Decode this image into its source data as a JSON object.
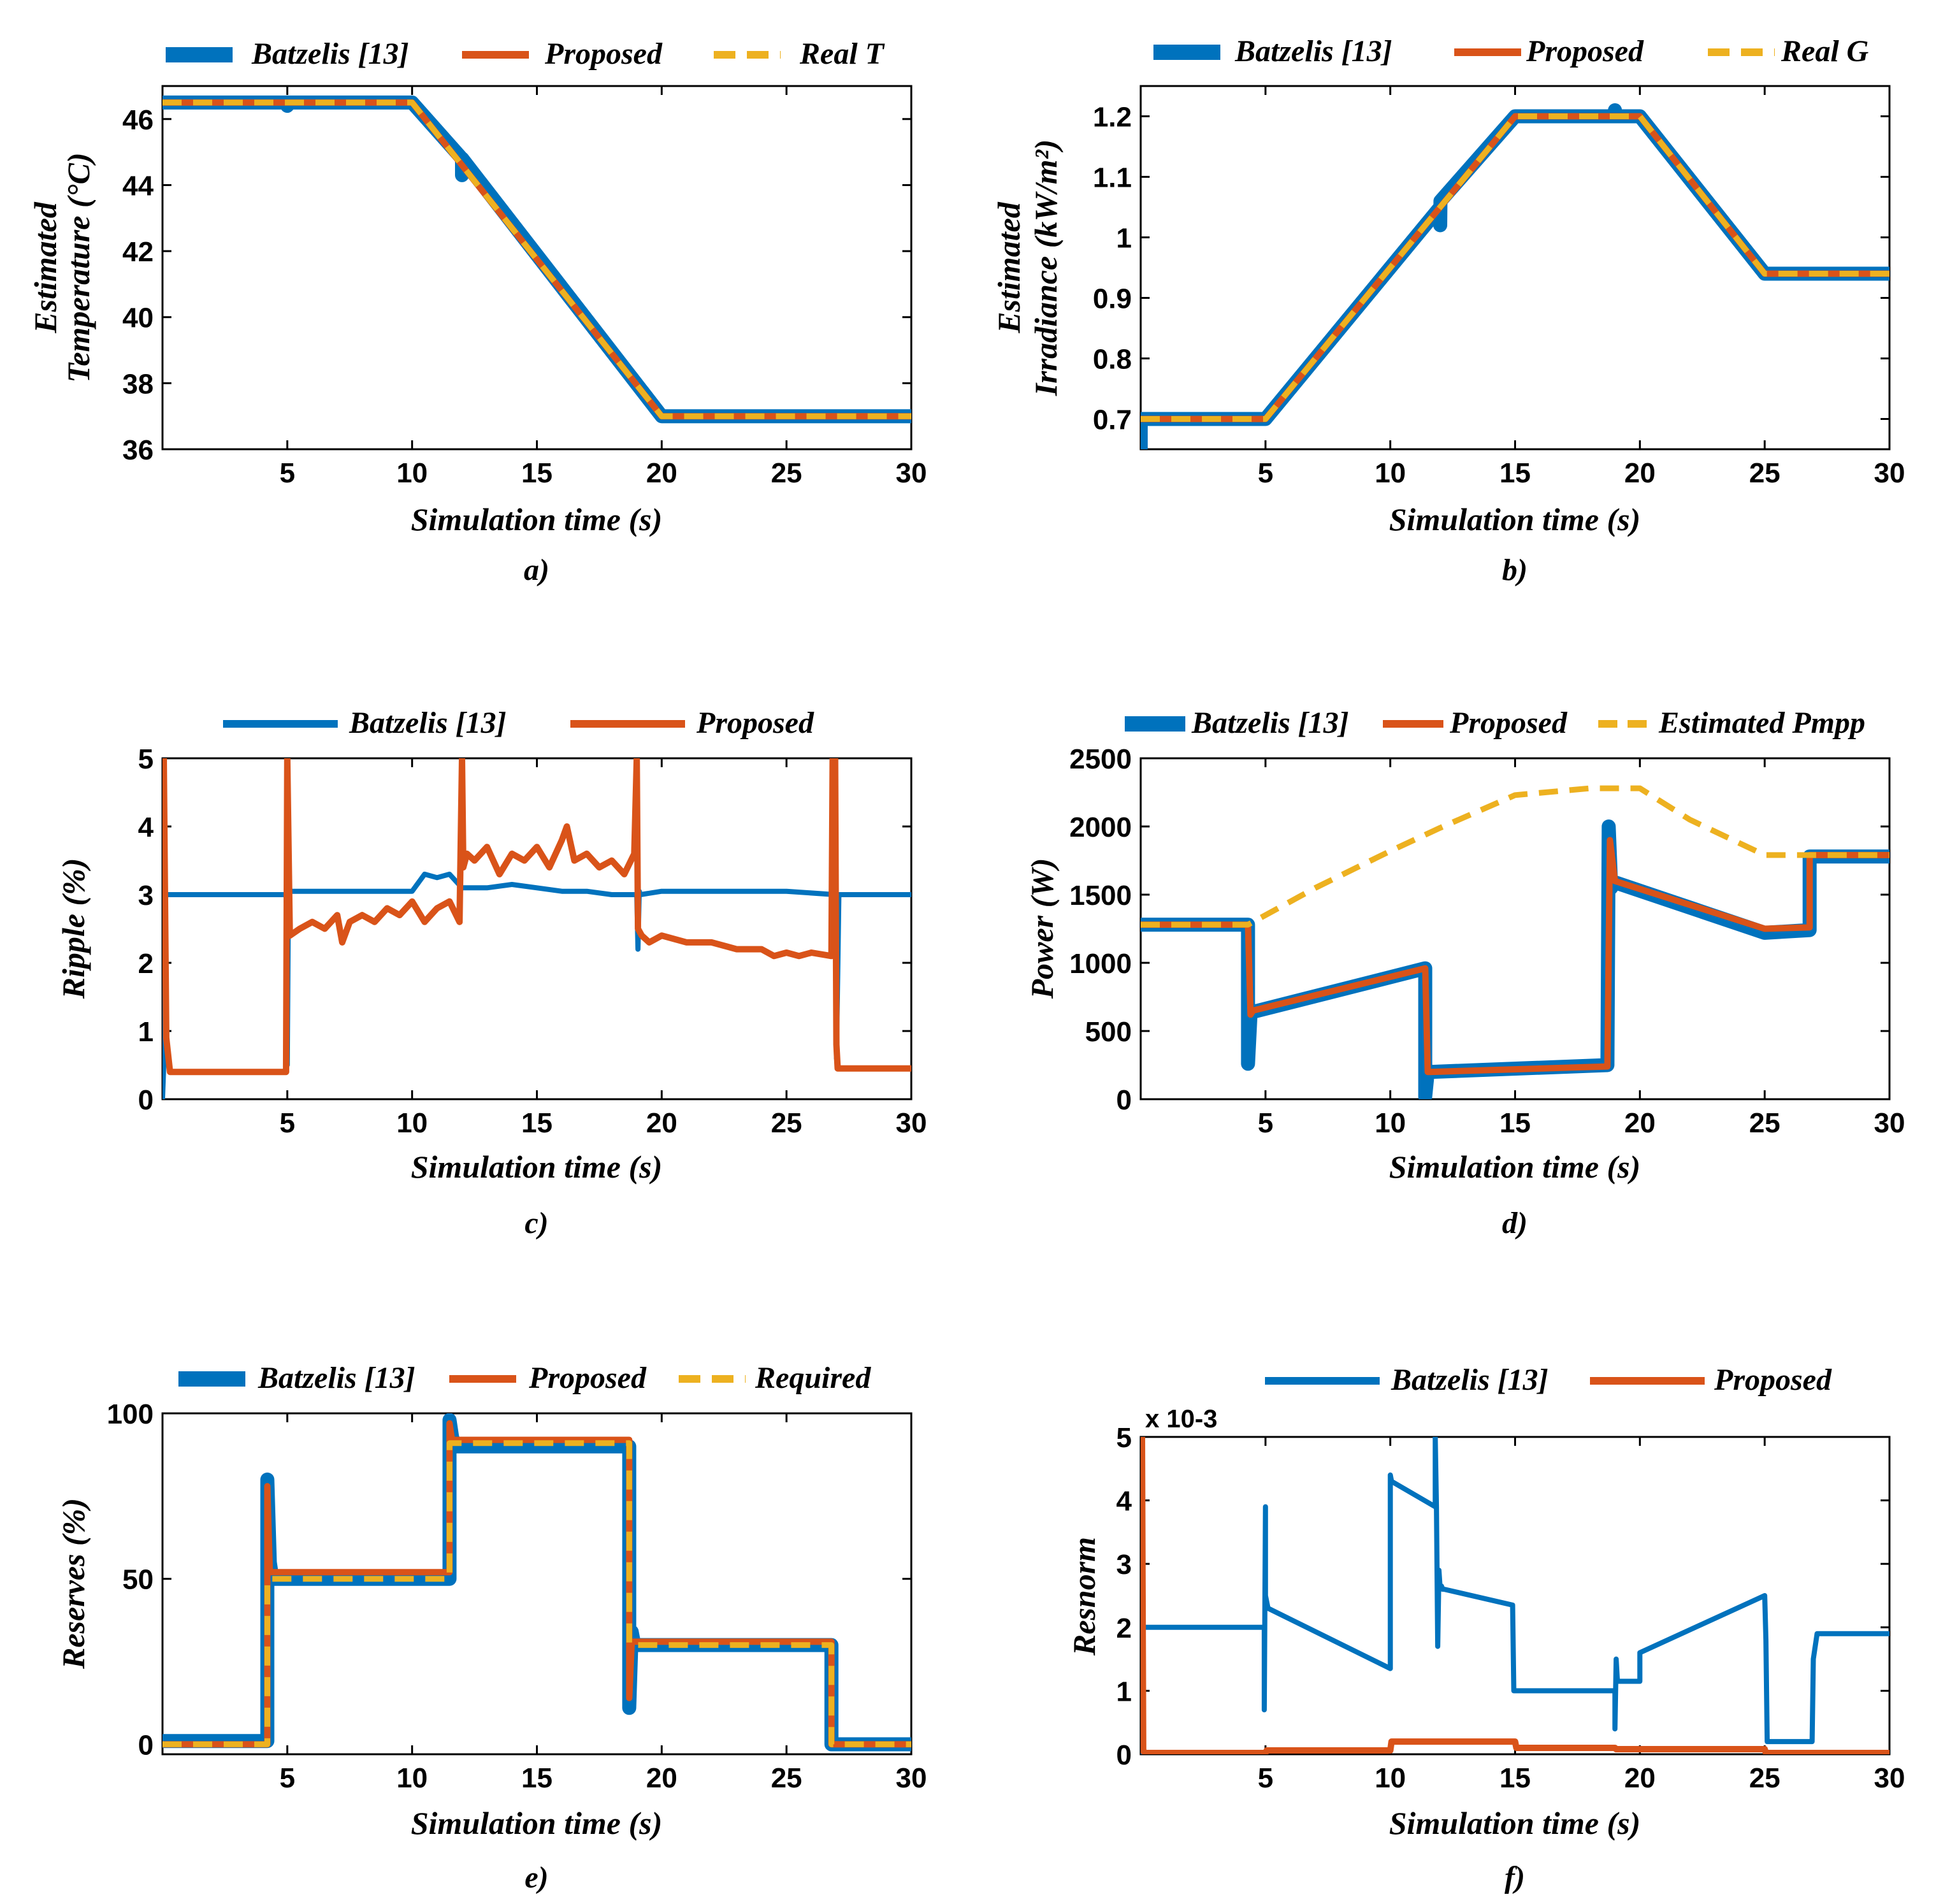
{
  "colors": {
    "batzelis": "#0072BD",
    "proposed": "#D95319",
    "reference": "#EDB120"
  },
  "chart_data": [
    {
      "id": "a",
      "type": "line",
      "caption": "a)",
      "xlabel": "Simulation time (s)",
      "ylabel_lines": [
        "Estimated",
        "Temperature (°C)"
      ],
      "xlim": [
        0,
        30
      ],
      "ylim": [
        36,
        47
      ],
      "xticks": [
        5,
        10,
        15,
        20,
        25,
        30
      ],
      "xtick_labels": [
        "5",
        "10",
        "15",
        "20",
        "25",
        "30"
      ],
      "yticks": [
        36,
        38,
        40,
        42,
        44,
        46
      ],
      "ytick_labels": [
        "36",
        "38",
        "40",
        "42",
        "44",
        "46"
      ],
      "legend": [
        "Batzelis [13]",
        "Proposed",
        "Real T"
      ],
      "series": [
        {
          "name": "Batzelis [13]",
          "style": "thick",
          "x": [
            0,
            5,
            5,
            5.01,
            10,
            12,
            12,
            12.01,
            20,
            30
          ],
          "y": [
            46.5,
            46.5,
            46.4,
            46.5,
            46.5,
            44.8,
            44.3,
            44.8,
            37,
            37
          ]
        },
        {
          "name": "Proposed",
          "style": "solid",
          "x": [
            0,
            10,
            20,
            30
          ],
          "y": [
            46.5,
            46.5,
            37,
            37
          ]
        },
        {
          "name": "Real T",
          "style": "dashed",
          "x": [
            0,
            10,
            20,
            30
          ],
          "y": [
            46.5,
            46.5,
            37,
            37
          ]
        }
      ]
    },
    {
      "id": "b",
      "type": "line",
      "caption": "b)",
      "xlabel": "Simulation time (s)",
      "ylabel_lines": [
        "Estimated",
        "Irradiance (kW/m²)"
      ],
      "xlim": [
        0,
        30
      ],
      "ylim": [
        0.65,
        1.25
      ],
      "xticks": [
        5,
        10,
        15,
        20,
        25,
        30
      ],
      "xtick_labels": [
        "5",
        "10",
        "15",
        "20",
        "25",
        "30"
      ],
      "yticks": [
        0.7,
        0.8,
        0.9,
        1.0,
        1.1,
        1.2
      ],
      "ytick_labels": [
        "0.7",
        "0.8",
        "0.9",
        "1",
        "1.1",
        "1.2"
      ],
      "legend": [
        "Batzelis [13]",
        "Proposed",
        "Real G"
      ],
      "series": [
        {
          "name": "Batzelis [13]",
          "style": "thick",
          "x": [
            0,
            0,
            0.3,
            0.3,
            5,
            12,
            12,
            12.01,
            15,
            19,
            19,
            19.01,
            20,
            25,
            30
          ],
          "y": [
            0.65,
            0.7,
            0.7,
            0.7,
            0.7,
            1.05,
            1.02,
            1.06,
            1.2,
            1.2,
            1.21,
            1.2,
            1.2,
            0.94,
            0.94
          ]
        },
        {
          "name": "Proposed",
          "style": "solid",
          "x": [
            0,
            5,
            15,
            20,
            25,
            30
          ],
          "y": [
            0.7,
            0.7,
            1.2,
            1.2,
            0.94,
            0.94
          ]
        },
        {
          "name": "Real G",
          "style": "dashed",
          "x": [
            0,
            5,
            15,
            20,
            25,
            30
          ],
          "y": [
            0.7,
            0.7,
            1.2,
            1.2,
            0.94,
            0.94
          ]
        }
      ]
    },
    {
      "id": "c",
      "type": "line",
      "caption": "c)",
      "xlabel": "Simulation time (s)",
      "ylabel_lines": [
        "Ripple (%)"
      ],
      "xlim": [
        0,
        30
      ],
      "ylim": [
        0,
        5
      ],
      "xticks": [
        5,
        10,
        15,
        20,
        25,
        30
      ],
      "xtick_labels": [
        "5",
        "10",
        "15",
        "20",
        "25",
        "30"
      ],
      "yticks": [
        0,
        1,
        2,
        3,
        4,
        5
      ],
      "ytick_labels": [
        "0",
        "1",
        "2",
        "3",
        "4",
        "5"
      ],
      "legend": [
        "Batzelis [13]",
        "Proposed"
      ],
      "series": [
        {
          "name": "Batzelis [13]",
          "style": "solid",
          "x": [
            0,
            0.05,
            0.1,
            0.2,
            4.95,
            5,
            5.05,
            5.1,
            10,
            10.5,
            11,
            11.5,
            12,
            13,
            14,
            15,
            16,
            17,
            18,
            19,
            19.05,
            19.1,
            19.15,
            20,
            25,
            26.95,
            27,
            27.05,
            27.1,
            30
          ],
          "y": [
            0,
            0.5,
            3,
            3,
            3,
            0.5,
            3.2,
            3.05,
            3.05,
            3.3,
            3.25,
            3.3,
            3.1,
            3.1,
            3.15,
            3.1,
            3.05,
            3.05,
            3.0,
            3.0,
            2.2,
            3.05,
            3.0,
            3.05,
            3.05,
            3.0,
            0.6,
            1.8,
            3,
            3
          ]
        },
        {
          "name": "Proposed",
          "style": "solid",
          "x": [
            0,
            0.05,
            0.15,
            0.3,
            4.9,
            4.95,
            5.0,
            5.1,
            5.5,
            6,
            6.5,
            7,
            7.2,
            7.5,
            8,
            8.5,
            9,
            9.5,
            10,
            10.5,
            11,
            11.5,
            11.9,
            12.0,
            12.05,
            12.2,
            12.5,
            13,
            13.5,
            14,
            14.5,
            15,
            15.5,
            16,
            16.2,
            16.5,
            17,
            17.5,
            18,
            18.5,
            18.9,
            19.0,
            19.05,
            19.2,
            19.5,
            20,
            21,
            22,
            23,
            24,
            24.5,
            25,
            25.5,
            26,
            26.8,
            26.85,
            26.95,
            27.0,
            27.05,
            30
          ],
          "y": [
            5,
            5,
            0.9,
            0.4,
            0.4,
            0.4,
            5,
            2.4,
            2.5,
            2.6,
            2.5,
            2.7,
            2.3,
            2.6,
            2.7,
            2.6,
            2.8,
            2.7,
            2.9,
            2.6,
            2.8,
            2.9,
            2.6,
            5,
            3.4,
            3.6,
            3.5,
            3.7,
            3.3,
            3.6,
            3.5,
            3.7,
            3.4,
            3.8,
            4.0,
            3.5,
            3.6,
            3.4,
            3.5,
            3.3,
            3.6,
            5,
            2.5,
            2.4,
            2.3,
            2.4,
            2.3,
            2.3,
            2.2,
            2.2,
            2.1,
            2.15,
            2.1,
            2.15,
            2.1,
            5,
            5,
            0.8,
            0.45,
            0.45
          ]
        }
      ]
    },
    {
      "id": "d",
      "type": "line",
      "caption": "d)",
      "xlabel": "Simulation time (s)",
      "ylabel_lines": [
        "Power (W)"
      ],
      "xlim": [
        0,
        30
      ],
      "ylim": [
        0,
        2500
      ],
      "xticks": [
        5,
        10,
        15,
        20,
        25,
        30
      ],
      "xtick_labels": [
        "5",
        "10",
        "15",
        "20",
        "25",
        "30"
      ],
      "yticks": [
        0,
        500,
        1000,
        1500,
        2000,
        2500
      ],
      "ytick_labels": [
        "0",
        "500",
        "1000",
        "1500",
        "2000",
        "2500"
      ],
      "legend": [
        "Batzelis [13]",
        "Proposed",
        "Estimated Pmpp"
      ],
      "series": [
        {
          "name": "Batzelis [13]",
          "style": "thick",
          "x": [
            0,
            4.3,
            4.3,
            4.4,
            4.5,
            11.4,
            11.4,
            11.5,
            11.6,
            18.7,
            18.75,
            18.85,
            19,
            25,
            26.8,
            26.8,
            30
          ],
          "y": [
            1280,
            1280,
            260,
            620,
            640,
            960,
            20,
            200,
            200,
            250,
            2000,
            1550,
            1590,
            1220,
            1240,
            1780,
            1780
          ]
        },
        {
          "name": "Proposed",
          "style": "solid",
          "x": [
            0,
            4.3,
            4.4,
            4.5,
            11.4,
            11.5,
            11.6,
            18.7,
            18.8,
            19,
            25,
            26.8,
            26.8,
            30
          ],
          "y": [
            1280,
            1280,
            620,
            650,
            960,
            200,
            200,
            240,
            1900,
            1600,
            1250,
            1260,
            1790,
            1790
          ]
        },
        {
          "name": "Estimated Pmpp",
          "style": "dashed",
          "x": [
            0,
            4.3,
            7,
            10,
            12,
            15,
            18,
            20,
            22,
            25,
            27,
            30
          ],
          "y": [
            1280,
            1280,
            1550,
            1820,
            1990,
            2230,
            2280,
            2280,
            2050,
            1790,
            1790,
            1790
          ]
        }
      ]
    },
    {
      "id": "e",
      "type": "line",
      "caption": "e)",
      "xlabel": "Simulation time (s)",
      "ylabel_lines": [
        "Reserves (%)"
      ],
      "xlim": [
        0,
        30
      ],
      "ylim": [
        -3,
        100
      ],
      "xticks": [
        5,
        10,
        15,
        20,
        25,
        30
      ],
      "xtick_labels": [
        "5",
        "10",
        "15",
        "20",
        "25",
        "30"
      ],
      "yticks": [
        0,
        50,
        100
      ],
      "ytick_labels": [
        "0",
        "50",
        "100"
      ],
      "legend": [
        "Batzelis [13]",
        "Proposed",
        "Required"
      ],
      "series": [
        {
          "name": "Batzelis [13]",
          "style": "thick",
          "x": [
            0,
            4.2,
            4.2,
            4.3,
            4.4,
            11.5,
            11.5,
            11.6,
            11.7,
            18.7,
            18.7,
            18.8,
            18.9,
            26.8,
            26.8,
            30
          ],
          "y": [
            1,
            1,
            80,
            55,
            50,
            50,
            98,
            93,
            90,
            90,
            11,
            34,
            30,
            30,
            0,
            0
          ]
        },
        {
          "name": "Proposed",
          "style": "solid",
          "x": [
            0,
            4.2,
            4.2,
            4.3,
            11.5,
            11.5,
            11.6,
            18.7,
            18.7,
            18.8,
            26.8,
            26.8,
            30
          ],
          "y": [
            0,
            0,
            78,
            52,
            52,
            97,
            92,
            92,
            14,
            31,
            31,
            0,
            0
          ]
        },
        {
          "name": "Required",
          "style": "dashed",
          "x": [
            0,
            4.2,
            4.2,
            11.5,
            11.5,
            18.7,
            18.7,
            26.8,
            26.8,
            30
          ],
          "y": [
            0,
            0,
            50,
            50,
            91,
            91,
            30,
            30,
            0,
            0
          ]
        }
      ]
    },
    {
      "id": "f",
      "type": "line",
      "caption": "f)",
      "xlabel": "Simulation time (s)",
      "ylabel_lines": [
        "Resnorm"
      ],
      "exponent_label": "x 10-3",
      "xlim": [
        0,
        30
      ],
      "ylim": [
        0,
        5
      ],
      "xticks": [
        5,
        10,
        15,
        20,
        25,
        30
      ],
      "xtick_labels": [
        "5",
        "10",
        "15",
        "20",
        "25",
        "30"
      ],
      "yticks": [
        0,
        1,
        2,
        3,
        4,
        5
      ],
      "ytick_labels": [
        "0",
        "1",
        "2",
        "3",
        "4",
        "5"
      ],
      "legend": [
        "Batzelis [13]",
        "Proposed"
      ],
      "series": [
        {
          "name": "Batzelis [13]",
          "style": "solid",
          "x": [
            0,
            0.05,
            0.1,
            4.95,
            4.95,
            5.0,
            5.0,
            5.05,
            5.1,
            10,
            10,
            10.05,
            11.8,
            11.8,
            11.85,
            11.9,
            11.95,
            12,
            12.05,
            12.1,
            12.15,
            14.9,
            14.95,
            15,
            19,
            19,
            19.05,
            19.1,
            19.5,
            19.5,
            20,
            20,
            25,
            25.05,
            25.1,
            26.9,
            26.95,
            27.1,
            30
          ],
          "y": [
            0,
            0.1,
            2,
            2,
            0.7,
            3.9,
            2.5,
            2.4,
            2.3,
            1.35,
            4.4,
            4.3,
            3.9,
            5,
            3.9,
            1.7,
            2.9,
            2.6,
            2.65,
            2.6,
            2.6,
            2.35,
            1.0,
            1.0,
            1.0,
            0.4,
            1.5,
            1.15,
            1.15,
            1.15,
            1.15,
            1.6,
            2.5,
            1.8,
            0.2,
            0.2,
            1.5,
            1.9,
            1.9
          ]
        },
        {
          "name": "Proposed",
          "style": "solid",
          "x": [
            0,
            0.05,
            0.1,
            0.2,
            5,
            5.05,
            10,
            10.05,
            12,
            12.05,
            15,
            15.05,
            19,
            19.05,
            25,
            25.05,
            30
          ],
          "y": [
            5,
            5,
            0.05,
            0.02,
            0.02,
            0.06,
            0.06,
            0.2,
            0.2,
            0.2,
            0.2,
            0.1,
            0.1,
            0.08,
            0.08,
            0.02,
            0.02
          ]
        }
      ]
    }
  ]
}
